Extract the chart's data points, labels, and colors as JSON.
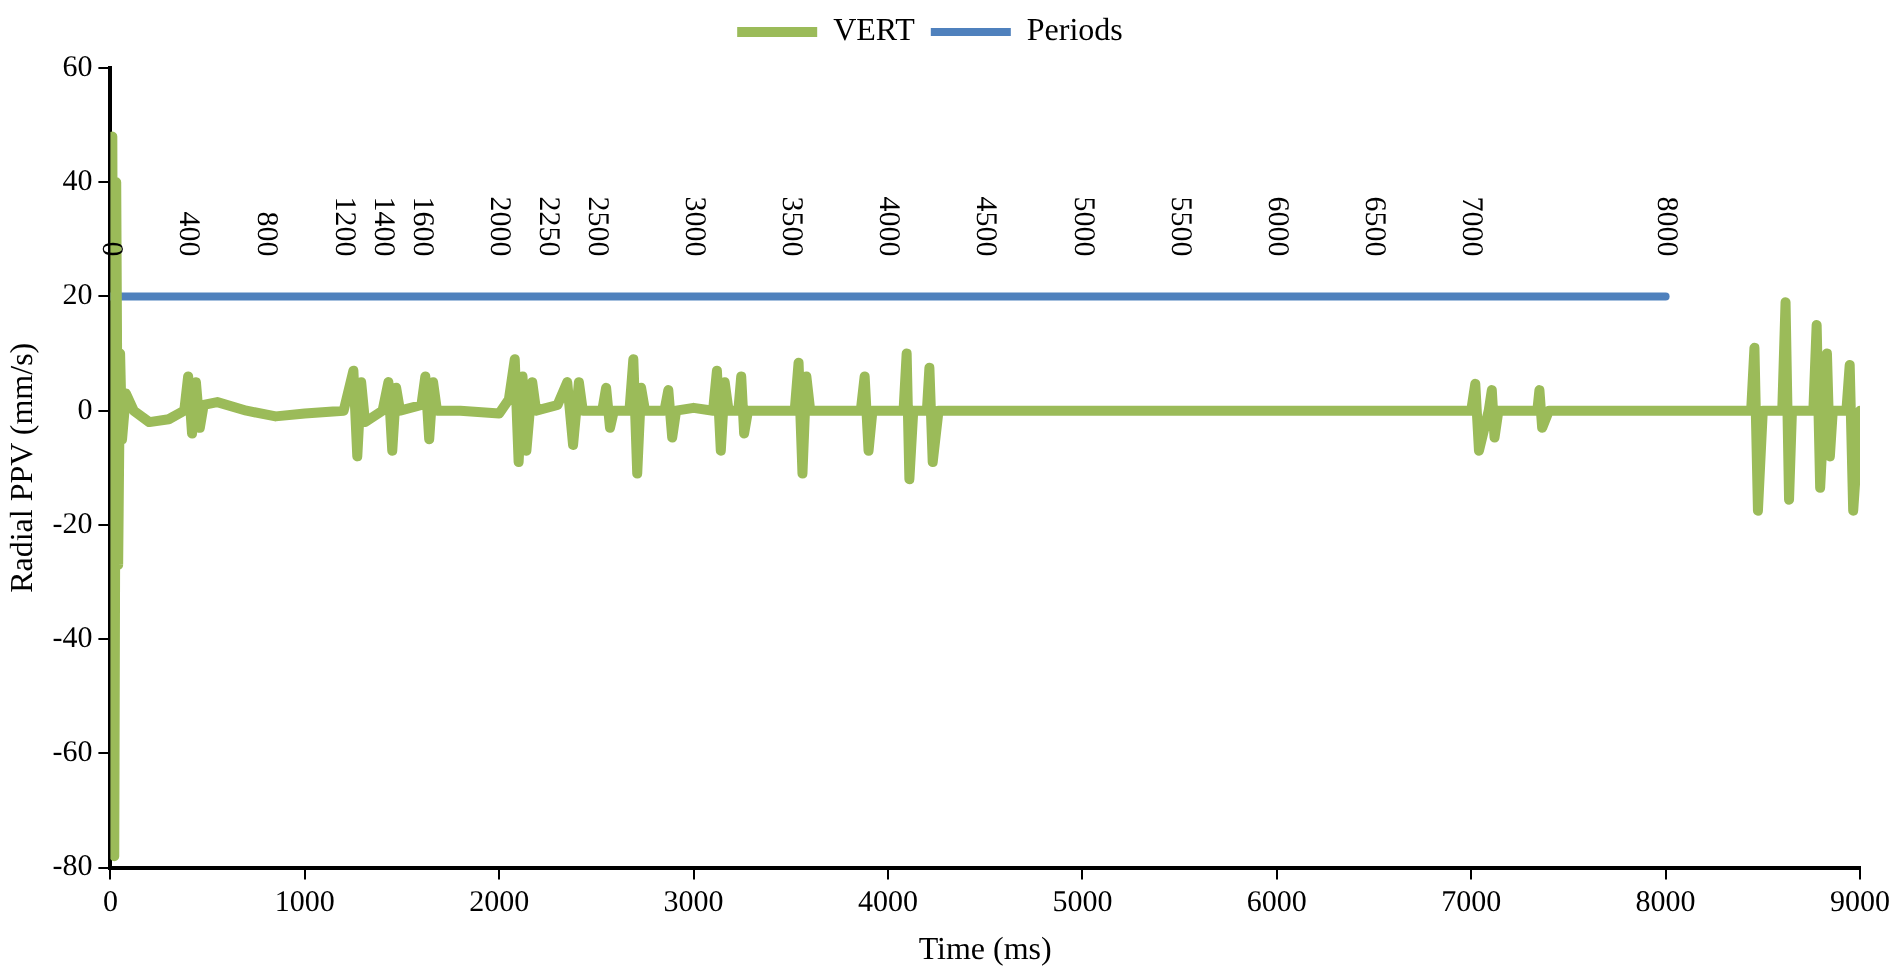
{
  "chart_data": {
    "type": "line",
    "xlabel": "Time (ms)",
    "ylabel": "Radial PPV (mm/s)",
    "xlim": [
      0,
      9000
    ],
    "xticks": [
      0,
      1000,
      2000,
      3000,
      4000,
      5000,
      6000,
      7000,
      8000,
      9000
    ],
    "ylim": [
      -80,
      60
    ],
    "yticks": [
      -80,
      -60,
      -40,
      -20,
      0,
      20,
      40,
      60
    ],
    "grid": false,
    "legend": "top",
    "marker": "none",
    "line_style": "solid",
    "series": [
      {
        "name": "VERT",
        "color": "#9bbb59",
        "x": [
          0,
          10,
          20,
          30,
          40,
          50,
          60,
          80,
          120,
          200,
          300,
          380,
          400,
          420,
          440,
          460,
          480,
          550,
          700,
          850,
          1000,
          1200,
          1250,
          1270,
          1290,
          1310,
          1400,
          1430,
          1450,
          1470,
          1490,
          1600,
          1620,
          1640,
          1660,
          1680,
          1800,
          2000,
          2050,
          2080,
          2100,
          2120,
          2140,
          2170,
          2190,
          2300,
          2350,
          2380,
          2410,
          2430,
          2530,
          2550,
          2570,
          2590,
          2670,
          2690,
          2710,
          2730,
          2750,
          2850,
          2870,
          2890,
          2910,
          3000,
          3100,
          3120,
          3140,
          3160,
          3180,
          3230,
          3245,
          3260,
          3280,
          3400,
          3520,
          3540,
          3560,
          3580,
          3600,
          3860,
          3880,
          3900,
          3920,
          4080,
          4096,
          4110,
          4130,
          4200,
          4213,
          4230,
          4260,
          4500,
          5000,
          5500,
          6000,
          6500,
          7000,
          7021,
          7040,
          7090,
          7106,
          7120,
          7140,
          7340,
          7351,
          7365,
          7400,
          8000,
          8400,
          8440,
          8457,
          8475,
          8500,
          8600,
          8617,
          8635,
          8650,
          8760,
          8777,
          8795,
          8815,
          8830,
          8845,
          8860,
          8930,
          8947,
          8965,
          9000
        ],
        "values": [
          0,
          48,
          -78,
          40,
          -27,
          10,
          -5,
          3,
          0,
          -2,
          -1.5,
          0,
          6,
          -4,
          5,
          -3,
          1,
          1.5,
          0,
          -1,
          -0.5,
          0,
          7,
          -8,
          5,
          -2,
          0,
          5,
          -7,
          4,
          0,
          1,
          6,
          -5,
          5,
          0,
          0,
          -0.5,
          2,
          9,
          -9,
          6,
          -7,
          5,
          0,
          1,
          5,
          -6,
          5,
          0,
          0,
          4,
          -3,
          0,
          0,
          9,
          -11,
          4,
          0,
          0,
          3.6,
          -4.7,
          0,
          0.5,
          0,
          7,
          -7,
          5,
          0,
          0,
          6,
          -4,
          0,
          0,
          0,
          8.4,
          -11,
          6,
          0,
          0,
          6,
          -7,
          0,
          0,
          10,
          -12,
          0,
          0,
          7.5,
          -9,
          0,
          0,
          0,
          0,
          0,
          0,
          0,
          4.7,
          -7,
          0,
          3.6,
          -4.7,
          0,
          0,
          3.6,
          -3,
          0,
          0,
          0,
          0,
          11,
          -17.5,
          0,
          0,
          19,
          -15.6,
          0,
          0,
          15,
          -13.5,
          0,
          10,
          -8,
          0,
          0,
          8,
          -17.5,
          0
        ]
      },
      {
        "name": "Periods",
        "color": "#4f81bd",
        "x": [
          0,
          400,
          800,
          1200,
          1400,
          1600,
          2000,
          2250,
          2500,
          3000,
          3500,
          4000,
          4500,
          5000,
          5500,
          6000,
          6500,
          7000,
          8000
        ],
        "values": [
          20,
          20,
          20,
          20,
          20,
          20,
          20,
          20,
          20,
          20,
          20,
          20,
          20,
          20,
          20,
          20,
          20,
          20,
          20
        ]
      }
    ],
    "annotations": [
      {
        "text": "0",
        "x": 0,
        "y": 20
      },
      {
        "text": "400",
        "x": 400,
        "y": 20
      },
      {
        "text": "800",
        "x": 800,
        "y": 20
      },
      {
        "text": "1200",
        "x": 1200,
        "y": 20
      },
      {
        "text": "1400",
        "x": 1400,
        "y": 20
      },
      {
        "text": "1600",
        "x": 1600,
        "y": 20
      },
      {
        "text": "2000",
        "x": 2000,
        "y": 20
      },
      {
        "text": "2250",
        "x": 2250,
        "y": 20
      },
      {
        "text": "2500",
        "x": 2500,
        "y": 20
      },
      {
        "text": "3000",
        "x": 3000,
        "y": 20
      },
      {
        "text": "3500",
        "x": 3500,
        "y": 20
      },
      {
        "text": "4000",
        "x": 4000,
        "y": 20
      },
      {
        "text": "4500",
        "x": 4500,
        "y": 20
      },
      {
        "text": "5000",
        "x": 5000,
        "y": 20
      },
      {
        "text": "5500",
        "x": 5500,
        "y": 20
      },
      {
        "text": "6000",
        "x": 6000,
        "y": 20
      },
      {
        "text": "6500",
        "x": 6500,
        "y": 20
      },
      {
        "text": "7000",
        "x": 7000,
        "y": 20
      },
      {
        "text": "8000",
        "x": 8000,
        "y": 20
      }
    ]
  }
}
